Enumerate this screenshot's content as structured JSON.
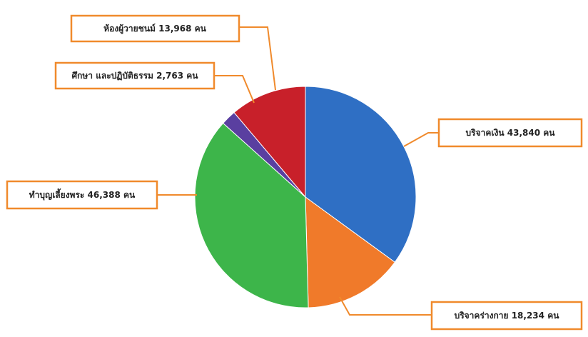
{
  "chart_data": {
    "type": "pie",
    "categories": [
      "บริจาคเงิน",
      "บริจาคร่างกาย",
      "ทำบุญเลี้ยงพระ",
      "ศึกษา และปฏิบัติธรรม",
      "ห้องผู้วายชนม์"
    ],
    "values": [
      43840,
      18234,
      46388,
      2763,
      13968
    ],
    "value_labels": [
      "43,840 คน",
      "18,234 คน",
      "46,388 คน",
      "2,763 คน",
      "13,968 คน"
    ],
    "colors": [
      "#2f6fc4",
      "#f07a2a",
      "#3db54a",
      "#5a3fa0",
      "#c8202a"
    ]
  }
}
